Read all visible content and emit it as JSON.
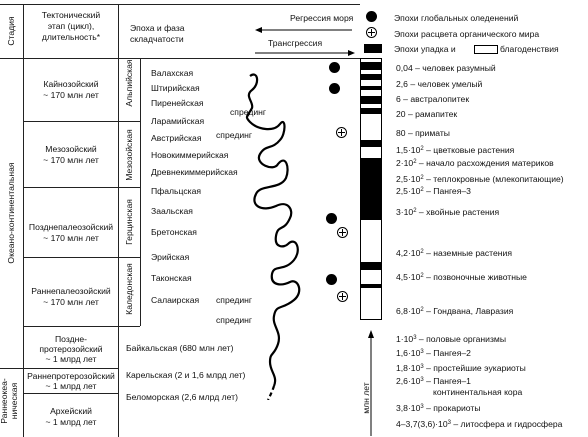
{
  "header": {
    "stage": "Стадия",
    "tectonic_line1": "Тектонический",
    "tectonic_line2": "этап (цикл),",
    "tectonic_line3": "длительность*",
    "epoch_line1": "Эпоха и фаза",
    "epoch_line2": "складчатости",
    "regression": "Регрессия моря",
    "transgression": "Трансгрессия",
    "legend_glaciation": "Эпохи глобальных оледенений",
    "legend_flourish": "Эпохи расцвета органического мира",
    "legend_decline": "Эпохи упадка и",
    "legend_prosperity": "благоденствия"
  },
  "stages": {
    "oceanic_continental": "Океано-континентальная",
    "early_oceanic_1": "Раннеокеа-",
    "early_oceanic_2": "ническая"
  },
  "cycles": [
    {
      "name": "Кайнозойский",
      "dur": "~ 170 млн лет"
    },
    {
      "name": "Мезозойский",
      "dur": "~ 170 млн лет"
    },
    {
      "name": "Позднепалеозойский",
      "dur": "~ 170 млн лет"
    },
    {
      "name": "Раннепалеозойский",
      "dur": "~ 170 млн лет"
    },
    {
      "name1": "Поздне-",
      "name2": "протерозойский",
      "dur": "~ 1 млрд лет"
    },
    {
      "name": "Раннепротерозойский",
      "dur": "~ 1 млрд лет"
    },
    {
      "name": "Архейский",
      "dur": "~ 1 млрд лет"
    }
  ],
  "epoch_groups": {
    "alpine": "Альпийская",
    "mesozoic": "Мезозойская",
    "hercynian": "Герцинская",
    "caledonian": "Каледонская"
  },
  "phases": {
    "wallachian": "Валахская",
    "styrian": "Штирийская",
    "pyrenean": "Пиренейская",
    "laramide": "Ларамийская",
    "austrian": "Австрийская",
    "neocimmerian": "Новокиммерийская",
    "paleocimmerian": "Древнекиммерийская",
    "pfalz": "Пфальцская",
    "saal": "Заальская",
    "breton": "Бретонская",
    "erian": "Эрийская",
    "taconic": "Таконская",
    "salair": "Салаирская",
    "baikal": "Байкальская (680 млн лет)",
    "karelian": "Карельская (2 и 1,6 млрд лет)",
    "belomorian": "Беломорская (2,6 млрд лет)"
  },
  "spreading_label": "спрединг",
  "scale_axis": "млн лет",
  "events": [
    {
      "v": "0,04",
      "txt": "– человек разумный"
    },
    {
      "v": "2,6",
      "txt": "– человек умелый"
    },
    {
      "v": "6",
      "txt": "– австралопитек"
    },
    {
      "v": "20",
      "txt": "– рамапитек"
    },
    {
      "v": "80",
      "txt": "– приматы"
    },
    {
      "m": "1,5",
      "e": "2",
      "txt": "– цветковые растения"
    },
    {
      "m": "2",
      "e": "2",
      "txt": "– начало расхождения материков"
    },
    {
      "m": "2,5",
      "e": "2",
      "txt": "– теплокровные (млекопитающие)"
    },
    {
      "m": "2,5",
      "e": "2",
      "txt": "– Пангея–3"
    },
    {
      "m": "3",
      "e": "2",
      "txt": "– хвойные растения"
    },
    {
      "m": "4,2",
      "e": "2",
      "txt": "– наземные растения"
    },
    {
      "m": "4,5",
      "e": "2",
      "txt": "– позвоночные животные"
    },
    {
      "m": "6,8",
      "e": "2",
      "txt": "– Гондвана, Лавразия"
    },
    {
      "m": "1",
      "e": "3",
      "txt": "– половые организмы"
    },
    {
      "m": "1,6",
      "e": "3",
      "txt": "– Пангея–2"
    },
    {
      "m": "1,8",
      "e": "3",
      "txt": "– простейшие эукариоты"
    },
    {
      "m": "2,6",
      "e": "3",
      "txt": "– Пангея–1"
    },
    {
      "cont": "континентальная кора"
    },
    {
      "m": "3,8",
      "e": "3",
      "txt": "– прокариоты"
    },
    {
      "m": "4–3,7(3,6)",
      "e": "3",
      "txt": "– литосфера и гидросфера"
    }
  ]
}
